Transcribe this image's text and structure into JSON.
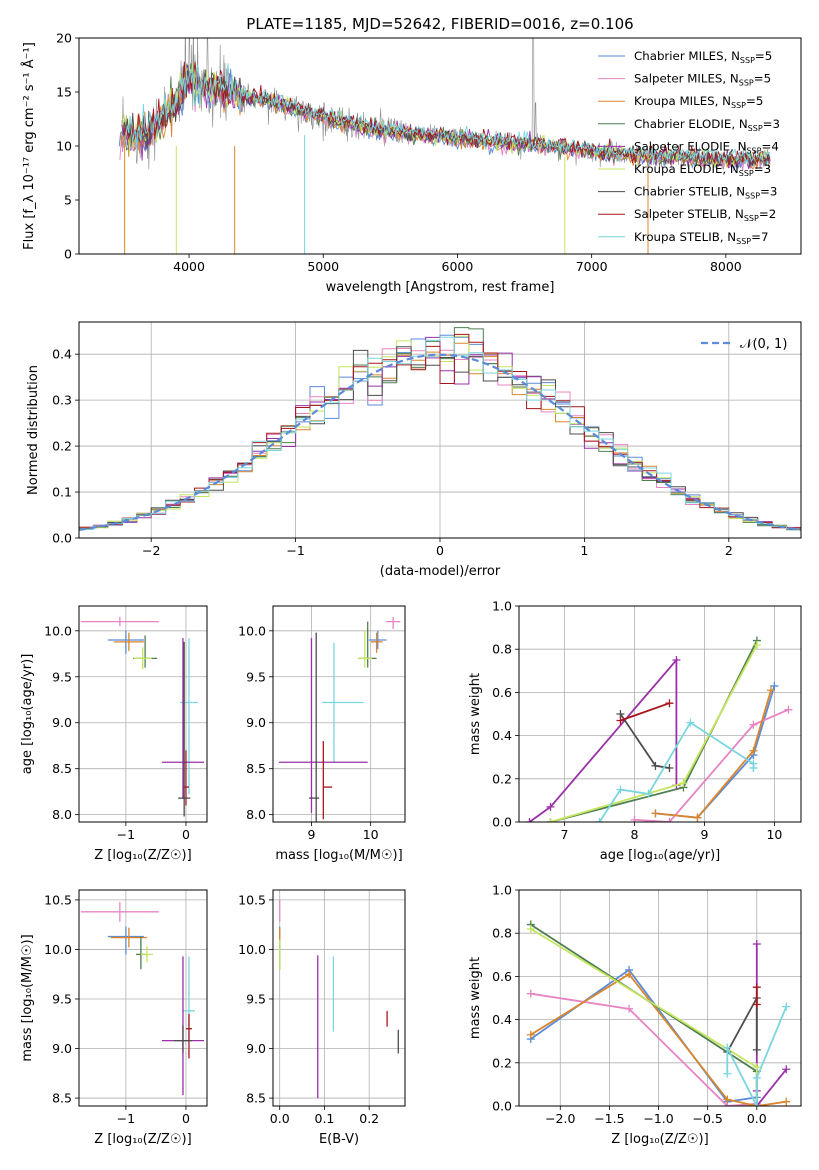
{
  "figure": {
    "title": "PLATE=1185, MJD=52642, FIBERID=0016, z=0.106"
  },
  "chart_data": [
    {
      "id": "spectrum",
      "type": "line",
      "title": "PLATE=1185, MJD=52642, FIBERID=0016, z=0.106",
      "xlabel": "wavelength [Angstrom, rest frame]",
      "ylabel": "Flux [f_λ 10⁻¹⁷ erg cm⁻² s⁻¹ Å⁻¹]",
      "xlim": [
        3180,
        8560
      ],
      "ylim": [
        0,
        20
      ],
      "xticks": [
        4000,
        5000,
        6000,
        7000,
        8000
      ],
      "yticks": [
        0,
        5,
        10,
        15,
        20
      ],
      "grid": false,
      "legend_position": "upper right",
      "series": [
        {
          "name": "Chabrier MILES, N_SSP=5",
          "color": "#5b8bd9"
        },
        {
          "name": "Salpeter MILES, N_SSP=5",
          "color": "#e784c4"
        },
        {
          "name": "Kroupa MILES, N_SSP=5",
          "color": "#d9862c"
        },
        {
          "name": "Chabrier ELODIE, N_SSP=3",
          "color": "#4e7f50"
        },
        {
          "name": "Salpeter ELODIE, N_SSP=4",
          "color": "#9a31a8"
        },
        {
          "name": "Kroupa ELODIE, N_SSP=3",
          "color": "#c4e55e"
        },
        {
          "name": "Chabrier STELIB, N_SSP=3",
          "color": "#4d4d4d"
        },
        {
          "name": "Salpeter STELIB, N_SSP=2",
          "color": "#a8161d"
        },
        {
          "name": "Kroupa STELIB, N_SSP=7",
          "color": "#79d6de"
        }
      ],
      "data_color": "#8a8a8a",
      "model_profile": {
        "x": [
          3500,
          3700,
          3900,
          4000,
          4100,
          4300,
          4500,
          4700,
          4900,
          5100,
          5300,
          5500,
          5700,
          5900,
          6100,
          6300,
          6500,
          6700,
          6900,
          7100,
          7300,
          7500,
          7700,
          7900,
          8100,
          8300
        ],
        "y": [
          11.0,
          11.2,
          14.0,
          16.3,
          15.5,
          14.8,
          14.5,
          13.8,
          13.0,
          12.3,
          11.8,
          11.4,
          11.1,
          10.9,
          10.6,
          10.3,
          10.2,
          10.0,
          9.7,
          9.4,
          9.1,
          9.0,
          9.0,
          8.8,
          8.7,
          8.8
        ]
      }
    },
    {
      "id": "residuals",
      "type": "histogram",
      "xlabel": "(data-model)/error",
      "ylabel": "Normed distribution",
      "xlim": [
        -2.5,
        2.5
      ],
      "ylim": [
        0,
        0.47
      ],
      "xticks": [
        -2,
        -1,
        0,
        1,
        2
      ],
      "yticks": [
        0.0,
        0.1,
        0.2,
        0.3,
        0.4
      ],
      "grid": true,
      "legend_position": "upper right",
      "reference_curve": {
        "name": "𝒩(0, 1)",
        "color": "#5b8bd9",
        "style": "dashed"
      }
    },
    {
      "id": "age-vs-Z",
      "type": "scatter",
      "xlabel": "Z [log₁₀(Z/Z☉)]",
      "ylabel": "age  [log₁₀(age/yr)]",
      "xlim": [
        -1.78,
        0.35
      ],
      "ylim": [
        7.92,
        10.27
      ],
      "xticks": [
        -1,
        0
      ],
      "yticks": [
        8.0,
        8.5,
        9.0,
        9.5,
        10.0
      ],
      "grid": true,
      "points": [
        {
          "color": "#e784c4",
          "x": -1.1,
          "xerr": [
            0.65,
            0.65
          ],
          "y": 10.1,
          "yerr": [
            0.05,
            0.05
          ]
        },
        {
          "color": "#5b8bd9",
          "x": -1.0,
          "xerr": [
            0.3,
            0.3
          ],
          "y": 9.9,
          "yerr": [
            0.15,
            0.1
          ]
        },
        {
          "color": "#d9862c",
          "x": -0.95,
          "xerr": [
            0.25,
            0.25
          ],
          "y": 9.88,
          "yerr": [
            0.1,
            0.1
          ]
        },
        {
          "color": "#4e7f50",
          "x": -0.68,
          "xerr": [
            0.2,
            0.2
          ],
          "y": 9.7,
          "yerr": [
            0.1,
            0.25
          ]
        },
        {
          "color": "#c4e55e",
          "x": -0.72,
          "xerr": [
            0.15,
            0.15
          ],
          "y": 9.7,
          "yerr": [
            0.12,
            0.12
          ]
        },
        {
          "color": "#79d6de",
          "x": 0.05,
          "xerr": [
            0.15,
            0.15
          ],
          "y": 9.22,
          "yerr": [
            1.0,
            0.7
          ]
        },
        {
          "color": "#9a31a8",
          "x": -0.05,
          "xerr": [
            0.35,
            0.35
          ],
          "y": 8.57,
          "yerr": [
            0.4,
            1.35
          ]
        },
        {
          "color": "#a8161d",
          "x": 0.0,
          "xerr": [
            0.05,
            0.05
          ],
          "y": 8.3,
          "yerr": [
            0.2,
            0.4
          ]
        },
        {
          "color": "#4d4d4d",
          "x": -0.03,
          "xerr": [
            0.1,
            0.1
          ],
          "y": 8.18,
          "yerr": [
            0.2,
            1.7
          ]
        }
      ]
    },
    {
      "id": "age-vs-mass",
      "type": "scatter",
      "xlabel": "mass [log₁₀(M/M☉)]",
      "ylabel": "",
      "xlim": [
        8.35,
        10.58
      ],
      "ylim": [
        7.92,
        10.27
      ],
      "xticks": [
        9,
        10
      ],
      "yticks": [
        8.0,
        8.5,
        9.0,
        9.5,
        10.0
      ],
      "grid": true,
      "points": [
        {
          "color": "#e784c4",
          "x": 10.38,
          "xerr": [
            0.12,
            0.12
          ],
          "y": 10.1,
          "yerr": [
            0.08,
            0.05
          ]
        },
        {
          "color": "#5b8bd9",
          "x": 10.12,
          "xerr": [
            0.15,
            0.15
          ],
          "y": 9.9,
          "yerr": [
            0.1,
            0.1
          ]
        },
        {
          "color": "#d9862c",
          "x": 10.1,
          "xerr": [
            0.1,
            0.1
          ],
          "y": 9.88,
          "yerr": [
            0.12,
            0.1
          ]
        },
        {
          "color": "#4e7f50",
          "x": 9.95,
          "xerr": [
            0.15,
            0.15
          ],
          "y": 9.7,
          "yerr": [
            0.1,
            0.4
          ]
        },
        {
          "color": "#c4e55e",
          "x": 9.9,
          "xerr": [
            0.12,
            0.12
          ],
          "y": 9.7,
          "yerr": [
            0.1,
            0.3
          ]
        },
        {
          "color": "#79d6de",
          "x": 9.38,
          "xerr": [
            0.2,
            0.5
          ],
          "y": 9.22,
          "yerr": [
            0.65,
            0.65
          ]
        },
        {
          "color": "#9a31a8",
          "x": 9.0,
          "xerr": [
            0.55,
            0.95
          ],
          "y": 8.57,
          "yerr": [
            0.55,
            1.35
          ]
        },
        {
          "color": "#a8161d",
          "x": 9.2,
          "xerr": [
            0.0,
            0.15
          ],
          "y": 8.3,
          "yerr": [
            0.35,
            0.5
          ]
        },
        {
          "color": "#4d4d4d",
          "x": 9.08,
          "xerr": [
            0.12,
            0.05
          ],
          "y": 8.18,
          "yerr": [
            0.4,
            1.8
          ]
        }
      ]
    },
    {
      "id": "weight-vs-age",
      "type": "line",
      "xlabel": "age  [log₁₀(age/yr)]",
      "ylabel": "mass weight",
      "xlim": [
        6.35,
        10.38
      ],
      "ylim": [
        0,
        1
      ],
      "xticks": [
        7,
        8,
        9,
        10
      ],
      "yticks": [
        0.0,
        0.2,
        0.4,
        0.6,
        0.8,
        1.0
      ],
      "grid": true,
      "series": [
        {
          "color": "#5b8bd9",
          "x": [
            8.3,
            8.9,
            9.7,
            10.0
          ],
          "y": [
            0.04,
            0.02,
            0.31,
            0.63
          ]
        },
        {
          "color": "#e784c4",
          "x": [
            8.0,
            8.5,
            9.7,
            10.2
          ],
          "y": [
            0.01,
            0.0,
            0.45,
            0.52
          ]
        },
        {
          "color": "#d9862c",
          "x": [
            8.3,
            8.9,
            9.7,
            9.95
          ],
          "y": [
            0.04,
            0.02,
            0.33,
            0.61
          ]
        },
        {
          "color": "#4e7f50",
          "x": [
            6.8,
            8.7,
            9.75
          ],
          "y": [
            0.0,
            0.16,
            0.84
          ]
        },
        {
          "color": "#9a31a8",
          "x": [
            6.5,
            6.8,
            8.6,
            8.6
          ],
          "y": [
            0.0,
            0.07,
            0.75,
            0.17
          ]
        },
        {
          "color": "#c4e55e",
          "x": [
            6.8,
            8.7,
            9.75
          ],
          "y": [
            0.0,
            0.18,
            0.82
          ]
        },
        {
          "color": "#4d4d4d",
          "x": [
            7.8,
            8.3,
            8.5
          ],
          "y": [
            0.5,
            0.26,
            0.25
          ]
        },
        {
          "color": "#a8161d",
          "x": [
            7.8,
            8.5
          ],
          "y": [
            0.47,
            0.55
          ]
        },
        {
          "color": "#79d6de",
          "x": [
            7.5,
            7.8,
            8.2,
            8.8,
            9.7,
            9.7,
            9.7
          ],
          "y": [
            0.0,
            0.15,
            0.13,
            0.46,
            0.27,
            0.25,
            0.25
          ]
        }
      ]
    },
    {
      "id": "mass-vs-Z",
      "type": "scatter",
      "xlabel": "Z [log₁₀(Z/Z☉)]",
      "ylabel": "mass [log₁₀(M/M☉)]",
      "xlim": [
        -1.78,
        0.35
      ],
      "ylim": [
        8.42,
        10.6
      ],
      "xticks": [
        -1,
        0
      ],
      "yticks": [
        8.5,
        9.0,
        9.5,
        10.0,
        10.5
      ],
      "grid": true,
      "points": [
        {
          "color": "#e784c4",
          "x": -1.1,
          "xerr": [
            0.65,
            0.65
          ],
          "y": 10.38,
          "yerr": [
            0.1,
            0.1
          ]
        },
        {
          "color": "#5b8bd9",
          "x": -1.0,
          "xerr": [
            0.3,
            0.3
          ],
          "y": 10.13,
          "yerr": [
            0.18,
            0.1
          ]
        },
        {
          "color": "#d9862c",
          "x": -0.95,
          "xerr": [
            0.3,
            0.3
          ],
          "y": 10.12,
          "yerr": [
            0.1,
            0.1
          ]
        },
        {
          "color": "#4e7f50",
          "x": -0.75,
          "xerr": [
            0.08,
            0.08
          ],
          "y": 9.95,
          "yerr": [
            0.15,
            0.18
          ]
        },
        {
          "color": "#c4e55e",
          "x": -0.65,
          "xerr": [
            0.1,
            0.1
          ],
          "y": 9.95,
          "yerr": [
            0.08,
            0.08
          ]
        },
        {
          "color": "#79d6de",
          "x": 0.05,
          "xerr": [
            0.1,
            0.1
          ],
          "y": 9.38,
          "yerr": [
            0.3,
            0.55
          ]
        },
        {
          "color": "#9a31a8",
          "x": -0.05,
          "xerr": [
            0.35,
            0.35
          ],
          "y": 9.08,
          "yerr": [
            0.55,
            0.85
          ]
        },
        {
          "color": "#a8161d",
          "x": 0.05,
          "xerr": [
            0.05,
            0.05
          ],
          "y": 9.2,
          "yerr": [
            0.3,
            0.15
          ]
        },
        {
          "color": "#4d4d4d",
          "x": -0.05,
          "xerr": [
            0.15,
            0.15
          ],
          "y": 9.08,
          "yerr": [
            0.12,
            0.15
          ]
        }
      ]
    },
    {
      "id": "mass-vs-ebv",
      "type": "scatter",
      "xlabel": "E(B-V)",
      "ylabel": "",
      "xlim": [
        -0.015,
        0.28
      ],
      "ylim": [
        8.42,
        10.6
      ],
      "xticks": [
        0.0,
        0.1,
        0.2
      ],
      "yticks": [
        8.5,
        9.0,
        9.5,
        10.0,
        10.5
      ],
      "grid": true,
      "points": [
        {
          "color": "#e784c4",
          "x": 0.0,
          "y": 10.38,
          "yerr": [
            0.1,
            0.12
          ]
        },
        {
          "color": "#5b8bd9",
          "x": 0.0,
          "y": 10.13,
          "yerr": [
            0.12,
            0.1
          ]
        },
        {
          "color": "#d9862c",
          "x": 0.0,
          "y": 10.12,
          "yerr": [
            0.1,
            0.1
          ]
        },
        {
          "color": "#4e7f50",
          "x": 0.0,
          "y": 9.95,
          "yerr": [
            0.15,
            0.15
          ]
        },
        {
          "color": "#c4e55e",
          "x": 0.0,
          "y": 9.95,
          "yerr": [
            0.15,
            0.15
          ]
        },
        {
          "color": "#9a31a8",
          "x": 0.085,
          "y": 9.22,
          "yerr": [
            0.72,
            0.72
          ]
        },
        {
          "color": "#79d6de",
          "x": 0.12,
          "y": 9.55,
          "yerr": [
            0.38,
            0.38
          ]
        },
        {
          "color": "#a8161d",
          "x": 0.24,
          "y": 9.3,
          "yerr": [
            0.08,
            0.08
          ]
        },
        {
          "color": "#4d4d4d",
          "x": 0.265,
          "y": 9.07,
          "yerr": [
            0.12,
            0.12
          ]
        }
      ]
    },
    {
      "id": "weight-vs-Z",
      "type": "line",
      "xlabel": "Z [log₁₀(Z/Z☉)]",
      "ylabel": "mass weight",
      "xlim": [
        -2.42,
        0.45
      ],
      "ylim": [
        0,
        1
      ],
      "xticks": [
        -2.0,
        -1.5,
        -1.0,
        -0.5,
        0.0
      ],
      "yticks": [
        0.0,
        0.2,
        0.4,
        0.6,
        0.8,
        1.0
      ],
      "grid": true,
      "series": [
        {
          "color": "#5b8bd9",
          "x": [
            -2.3,
            -1.3,
            -0.3,
            0.0
          ],
          "y": [
            0.31,
            0.63,
            0.02,
            0.04
          ]
        },
        {
          "color": "#e784c4",
          "x": [
            -2.3,
            -1.3,
            -0.3,
            0.0
          ],
          "y": [
            0.52,
            0.45,
            0.0,
            0.01
          ]
        },
        {
          "color": "#d9862c",
          "x": [
            -2.3,
            -1.3,
            -0.3,
            0.0,
            0.3
          ],
          "y": [
            0.33,
            0.61,
            0.03,
            0.0,
            0.02
          ]
        },
        {
          "color": "#4e7f50",
          "x": [
            -2.3,
            0.0,
            0.0
          ],
          "y": [
            0.84,
            0.16,
            0.0
          ]
        },
        {
          "color": "#9a31a8",
          "x": [
            0.0,
            0.0,
            0.0,
            0.3
          ],
          "y": [
            0.75,
            0.07,
            0.0,
            0.17
          ]
        },
        {
          "color": "#c4e55e",
          "x": [
            -2.3,
            0.0,
            0.0
          ],
          "y": [
            0.82,
            0.18,
            0.0
          ]
        },
        {
          "color": "#4d4d4d",
          "x": [
            -0.3,
            0.0,
            0.0
          ],
          "y": [
            0.25,
            0.5,
            0.26
          ]
        },
        {
          "color": "#a8161d",
          "x": [
            0.0,
            0.0
          ],
          "y": [
            0.55,
            0.47
          ]
        },
        {
          "color": "#79d6de",
          "x": [
            -0.3,
            -0.3,
            0.0,
            0.0,
            0.3
          ],
          "y": [
            0.15,
            0.27,
            0.0,
            0.13,
            0.46
          ]
        }
      ]
    }
  ]
}
